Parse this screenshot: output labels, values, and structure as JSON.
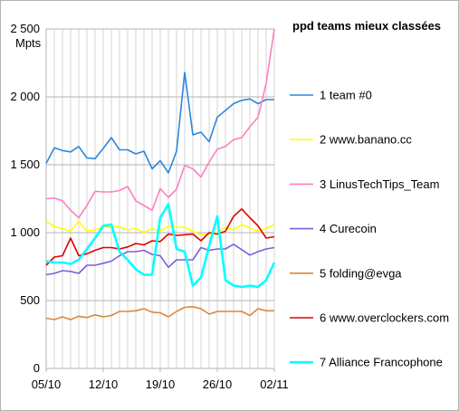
{
  "chart_data": {
    "type": "line",
    "title": "ppd teams mieux classées",
    "ylabel": "Mpts",
    "xlabel": "",
    "ylim": [
      0,
      2500
    ],
    "xlim": [
      "2020-10-05",
      "2020-11-02"
    ],
    "yticks": [
      0,
      500,
      1000,
      1500,
      2000,
      2500
    ],
    "ytick_labels": [
      "0",
      "500",
      "1 000",
      "1 500",
      "2 000",
      "2 500"
    ],
    "xticks": [
      "2020-10-05",
      "2020-10-12",
      "2020-10-19",
      "2020-10-26",
      "2020-11-02"
    ],
    "xtick_labels": [
      "05/10",
      "12/10",
      "19/10",
      "26/10",
      "02/11"
    ],
    "grid": true,
    "legend_position": "right",
    "x": [
      "2020-10-05",
      "2020-10-06",
      "2020-10-07",
      "2020-10-08",
      "2020-10-09",
      "2020-10-10",
      "2020-10-11",
      "2020-10-12",
      "2020-10-13",
      "2020-10-14",
      "2020-10-15",
      "2020-10-16",
      "2020-10-17",
      "2020-10-18",
      "2020-10-19",
      "2020-10-20",
      "2020-10-21",
      "2020-10-22",
      "2020-10-23",
      "2020-10-24",
      "2020-10-25",
      "2020-10-26",
      "2020-10-27",
      "2020-10-28",
      "2020-10-29",
      "2020-10-30",
      "2020-10-31",
      "2020-11-01",
      "2020-11-02"
    ],
    "series": [
      {
        "name": "1 team #0",
        "color": "#2e86de",
        "values": [
          1510,
          1625,
          1605,
          1595,
          1635,
          1550,
          1545,
          1620,
          1700,
          1610,
          1610,
          1580,
          1600,
          1470,
          1530,
          1440,
          1600,
          2180,
          1720,
          1740,
          1670,
          1850,
          1900,
          1950,
          1975,
          1985,
          1950,
          1980,
          1980
        ]
      },
      {
        "name": "2 www.banano.cc",
        "color": "#ffff00",
        "values": [
          1085,
          1045,
          1030,
          1010,
          1085,
          1010,
          1020,
          1045,
          1040,
          1045,
          1020,
          1030,
          1000,
          1030,
          1010,
          1050,
          1040,
          1040,
          1010,
          985,
          990,
          1000,
          1040,
          1020,
          1060,
          1035,
          1010,
          1030,
          1060
        ]
      },
      {
        "name": "3 LinusTechTips_Team",
        "color": "#ff7fbf",
        "values": [
          1250,
          1255,
          1235,
          1165,
          1110,
          1200,
          1305,
          1300,
          1300,
          1310,
          1340,
          1235,
          1200,
          1165,
          1325,
          1260,
          1320,
          1495,
          1470,
          1410,
          1520,
          1615,
          1635,
          1685,
          1700,
          1780,
          1850,
          2100,
          2500
        ]
      },
      {
        "name": "4 Curecoin",
        "color": "#7e5fd9",
        "values": [
          690,
          700,
          720,
          715,
          700,
          760,
          760,
          775,
          790,
          830,
          860,
          860,
          870,
          840,
          830,
          745,
          800,
          800,
          800,
          890,
          870,
          880,
          880,
          915,
          875,
          835,
          860,
          880,
          890
        ]
      },
      {
        "name": "5 folding@evga",
        "color": "#d9883a",
        "values": [
          370,
          360,
          380,
          360,
          385,
          375,
          395,
          380,
          390,
          420,
          420,
          425,
          440,
          415,
          410,
          380,
          420,
          450,
          455,
          440,
          400,
          420,
          420,
          420,
          420,
          390,
          440,
          425,
          425
        ]
      },
      {
        "name": "6 www.overclockers.com",
        "color": "#e00000",
        "values": [
          760,
          820,
          830,
          960,
          830,
          845,
          870,
          890,
          890,
          880,
          895,
          920,
          910,
          940,
          935,
          990,
          980,
          985,
          990,
          940,
          1000,
          990,
          1010,
          1120,
          1175,
          1110,
          1050,
          960,
          970
        ]
      },
      {
        "name": "7 Alliance Francophone",
        "color": "#00ffff",
        "values": [
          790,
          780,
          780,
          770,
          800,
          880,
          960,
          1050,
          1060,
          860,
          800,
          730,
          690,
          690,
          1110,
          1210,
          880,
          860,
          610,
          670,
          900,
          1120,
          650,
          610,
          600,
          610,
          600,
          650,
          780
        ]
      }
    ]
  }
}
